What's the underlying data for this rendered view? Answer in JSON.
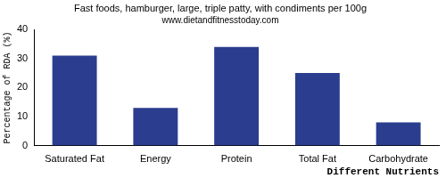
{
  "chart_data": {
    "type": "bar",
    "title": "Fast foods, hamburger, large, triple patty, with condiments per 100g",
    "subtitle": "www.dietandfitnesstoday.com",
    "x_label": "Different Nutrients",
    "y_label": "Percentage of RDA (%)",
    "categories": [
      "Saturated Fat",
      "Energy",
      "Protein",
      "Total Fat",
      "Carbohydrate"
    ],
    "values": [
      31,
      13,
      34,
      25,
      8
    ],
    "color": "#2b3d8e",
    "ylim": [
      0,
      40
    ],
    "yticks": [
      0,
      10,
      20,
      30,
      40
    ],
    "grid": false
  }
}
